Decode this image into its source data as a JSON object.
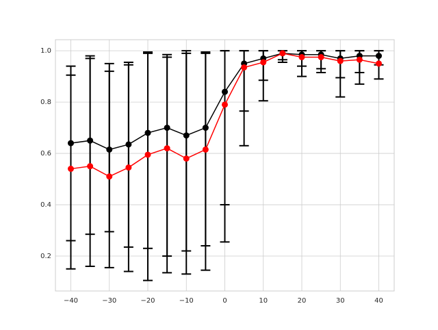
{
  "chart_data": {
    "type": "errorbar-line",
    "x": [
      -40,
      -35,
      -30,
      -25,
      -20,
      -15,
      -10,
      -5,
      0,
      5,
      10,
      15,
      20,
      25,
      30,
      35,
      40
    ],
    "series": [
      {
        "color": "#000000",
        "values": [
          0.64,
          0.65,
          0.615,
          0.635,
          0.68,
          0.7,
          0.67,
          0.7,
          0.84,
          0.95,
          0.97,
          0.99,
          0.985,
          0.985,
          0.97,
          0.98,
          0.98
        ],
        "err_minus": [
          0.38,
          0.365,
          0.32,
          0.4,
          0.45,
          0.5,
          0.45,
          0.46,
          0.44,
          0.185,
          0.085,
          0.025,
          0.045,
          0.055,
          0.075,
          0.065,
          0.035
        ],
        "err_plus": [
          0.3,
          0.33,
          0.335,
          0.32,
          0.315,
          0.285,
          0.33,
          0.295,
          0.16,
          0.05,
          0.03,
          0.01,
          0.015,
          0.015,
          0.03,
          0.02,
          0.02
        ]
      },
      {
        "color": "#ff0000",
        "values": [
          0.54,
          0.55,
          0.51,
          0.545,
          0.595,
          0.62,
          0.58,
          0.615,
          0.79,
          0.935,
          0.955,
          0.99,
          0.975,
          0.975,
          0.96,
          0.965,
          0.95
        ],
        "err_minus": [
          0.39,
          0.39,
          0.355,
          0.405,
          0.49,
          0.485,
          0.45,
          0.47,
          0.535,
          0.305,
          0.15,
          0.035,
          0.075,
          0.06,
          0.14,
          0.095,
          0.06
        ],
        "err_plus": [
          0.365,
          0.42,
          0.41,
          0.4,
          0.395,
          0.355,
          0.41,
          0.375,
          0.21,
          0.065,
          0.045,
          0.01,
          0.025,
          0.025,
          0.04,
          0.035,
          0.05
        ]
      }
    ],
    "xlim": [
      -44,
      44
    ],
    "ylim": [
      0.064,
      1.043
    ],
    "xticks": [
      {
        "value": -40,
        "label": "−40"
      },
      {
        "value": -30,
        "label": "−30"
      },
      {
        "value": -20,
        "label": "−20"
      },
      {
        "value": -10,
        "label": "−10"
      },
      0,
      10,
      20,
      30,
      40
    ],
    "yticks": [
      0.2,
      0.4,
      0.6,
      0.8,
      {
        "value": 1,
        "label": "1.0"
      }
    ],
    "grid": true
  }
}
